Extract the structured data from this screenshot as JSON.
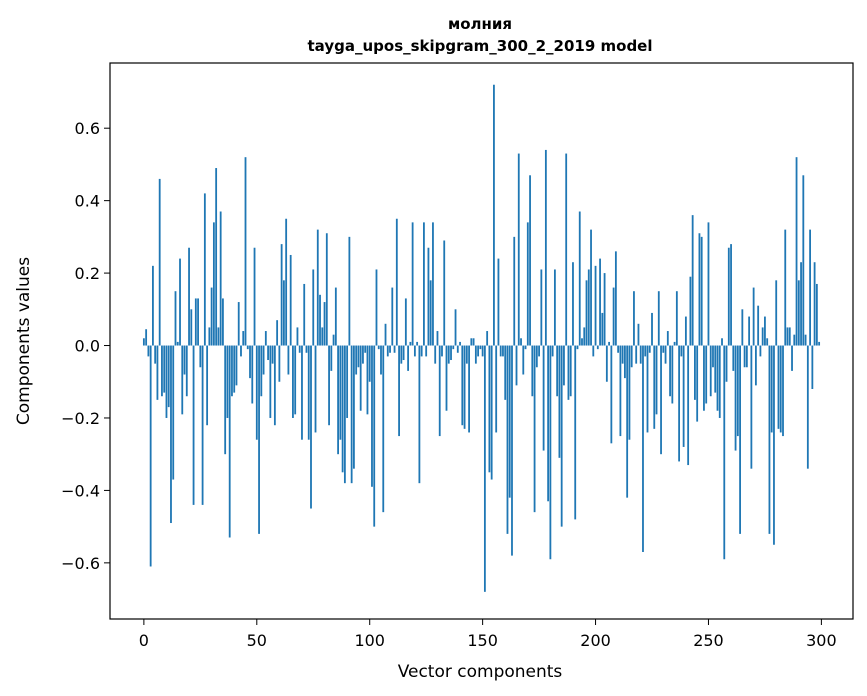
{
  "chart_data": {
    "type": "bar",
    "title": "молния",
    "subtitle": "tayga_upos_skipgram_300_2_2019 model",
    "xlabel": "Vector components",
    "ylabel": "Components values",
    "xlim": [
      -15,
      314
    ],
    "ylim": [
      -0.755,
      0.78
    ],
    "xticks": [
      0,
      50,
      100,
      150,
      200,
      250,
      300
    ],
    "yticks": [
      -0.6,
      -0.4,
      -0.2,
      0.0,
      0.2,
      0.4,
      0.6
    ],
    "ytick_labels": [
      "−0.6",
      "−0.4",
      "−0.2",
      "0.0",
      "0.2",
      "0.4",
      "0.6"
    ],
    "xtick_labels": [
      "0",
      "50",
      "100",
      "150",
      "200",
      "250",
      "300"
    ],
    "grid": false,
    "bar_color": "#1f77b4",
    "x": "indices 0..299",
    "values": [
      0.02,
      0.045,
      -0.03,
      -0.61,
      0.22,
      -0.05,
      -0.15,
      0.46,
      -0.14,
      -0.13,
      -0.2,
      -0.17,
      -0.49,
      -0.37,
      0.15,
      0.01,
      0.24,
      -0.19,
      -0.08,
      -0.14,
      0.27,
      0.1,
      -0.44,
      0.13,
      0.13,
      -0.06,
      -0.44,
      0.42,
      -0.22,
      0.05,
      0.16,
      0.34,
      0.49,
      0.05,
      0.37,
      0.13,
      -0.3,
      -0.2,
      -0.53,
      -0.14,
      -0.13,
      -0.11,
      0.12,
      -0.03,
      0.04,
      0.52,
      -0.01,
      -0.09,
      -0.16,
      0.27,
      -0.26,
      -0.52,
      -0.14,
      -0.08,
      0.04,
      -0.04,
      -0.2,
      -0.05,
      -0.22,
      0.07,
      -0.1,
      0.28,
      0.18,
      0.35,
      -0.08,
      0.25,
      -0.2,
      -0.19,
      0.05,
      -0.02,
      -0.26,
      0.17,
      -0.02,
      -0.26,
      -0.45,
      0.21,
      -0.24,
      0.32,
      0.14,
      0.05,
      0.12,
      0.31,
      -0.22,
      -0.07,
      0.03,
      0.16,
      -0.3,
      -0.26,
      -0.35,
      -0.38,
      -0.2,
      0.3,
      -0.38,
      -0.34,
      -0.08,
      -0.06,
      -0.18,
      -0.05,
      -0.02,
      -0.19,
      -0.1,
      -0.39,
      -0.5,
      0.21,
      -0.01,
      -0.08,
      -0.46,
      0.06,
      -0.03,
      -0.02,
      0.16,
      -0.02,
      0.35,
      -0.25,
      -0.05,
      -0.04,
      0.13,
      -0.07,
      0.01,
      0.34,
      -0.03,
      0.01,
      -0.38,
      -0.03,
      0.34,
      -0.03,
      0.27,
      0.18,
      0.34,
      -0.05,
      0.04,
      -0.25,
      -0.03,
      0.29,
      -0.18,
      -0.05,
      -0.04,
      -0.01,
      0.1,
      -0.02,
      0.01,
      -0.22,
      -0.23,
      -0.05,
      -0.24,
      0.02,
      0.02,
      -0.05,
      -0.03,
      -0.01,
      -0.03,
      -0.68,
      0.04,
      -0.35,
      -0.37,
      0.72,
      -0.24,
      0.24,
      -0.03,
      -0.03,
      -0.15,
      -0.52,
      -0.42,
      -0.58,
      0.3,
      -0.11,
      0.53,
      0.02,
      -0.08,
      -0.01,
      0.34,
      0.47,
      -0.14,
      -0.46,
      -0.06,
      -0.03,
      0.21,
      -0.29,
      0.54,
      -0.43,
      -0.59,
      -0.03,
      0.21,
      -0.14,
      -0.31,
      -0.5,
      -0.11,
      0.53,
      -0.15,
      -0.14,
      0.23,
      -0.48,
      -0.01,
      0.37,
      0.02,
      0.05,
      0.18,
      0.21,
      0.32,
      -0.03,
      0.22,
      -0.01,
      0.24,
      0.09,
      0.2,
      -0.1,
      0.01,
      -0.27,
      0.16,
      0.26,
      -0.02,
      -0.25,
      -0.05,
      -0.09,
      -0.42,
      -0.26,
      -0.06,
      0.15,
      -0.05,
      0.06,
      -0.05,
      -0.57,
      -0.03,
      -0.24,
      -0.02,
      0.09,
      -0.23,
      -0.19,
      0.15,
      -0.3,
      -0.02,
      -0.05,
      0.04,
      -0.14,
      -0.16,
      0.01,
      0.15,
      -0.32,
      -0.03,
      -0.28,
      0.08,
      -0.33,
      0.19,
      0.36,
      -0.15,
      -0.21,
      0.31,
      0.3,
      -0.18,
      -0.16,
      0.34,
      -0.14,
      -0.06,
      -0.13,
      -0.18,
      -0.2,
      0.02,
      -0.59,
      -0.1,
      0.27,
      0.28,
      -0.07,
      -0.29,
      -0.25,
      -0.52,
      0.1,
      -0.06,
      -0.06,
      0.08,
      -0.34,
      0.16,
      -0.11,
      0.11,
      -0.03,
      0.05,
      0.08,
      0.02,
      -0.52,
      -0.24,
      -0.55,
      0.18,
      -0.23,
      -0.24,
      -0.25,
      0.32,
      0.05,
      0.05,
      -0.07,
      0.03,
      0.52,
      0.18,
      0.23,
      0.47,
      0.03,
      -0.34,
      0.32,
      -0.12,
      0.23,
      0.17,
      0.01
    ]
  }
}
